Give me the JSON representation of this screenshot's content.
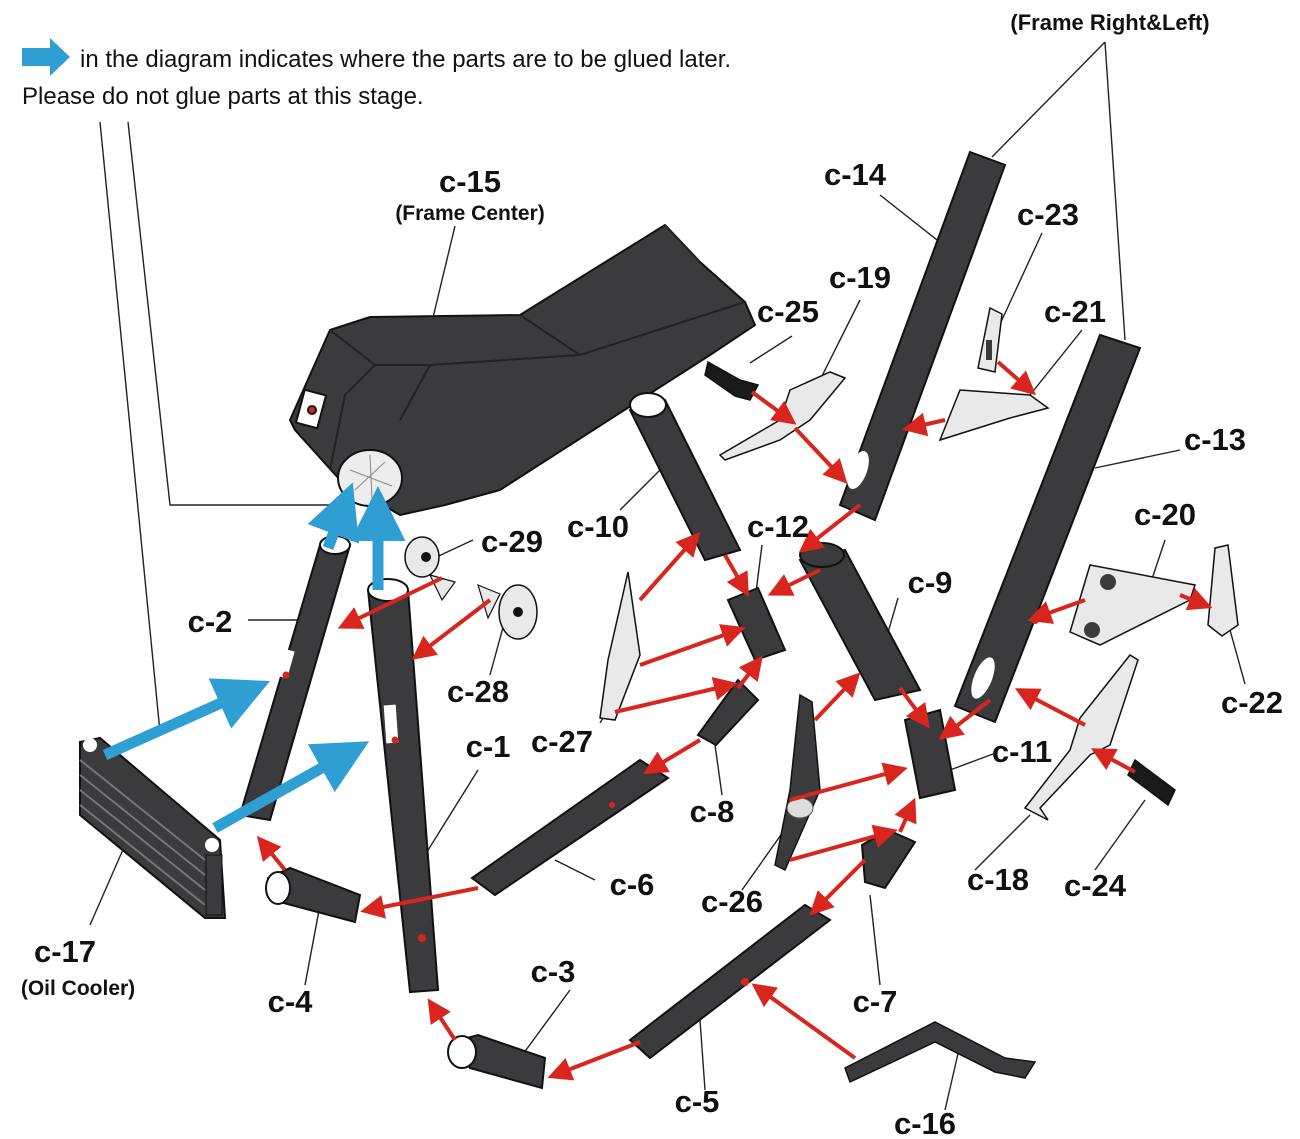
{
  "instructions": {
    "line1": "in the diagram indicates where the parts are to be glued later.",
    "line2": "Please do not glue parts at this stage."
  },
  "group_labels": {
    "frame_right_left": "(Frame Right&Left)",
    "frame_center": "(Frame Center)",
    "oil_cooler": "(Oil Cooler)"
  },
  "parts": {
    "c1": "c-1",
    "c2": "c-2",
    "c3": "c-3",
    "c4": "c-4",
    "c5": "c-5",
    "c6": "c-6",
    "c7": "c-7",
    "c8": "c-8",
    "c9": "c-9",
    "c10": "c-10",
    "c11": "c-11",
    "c12": "c-12",
    "c13": "c-13",
    "c14": "c-14",
    "c15": "c-15",
    "c16": "c-16",
    "c17": "c-17",
    "c18": "c-18",
    "c19": "c-19",
    "c20": "c-20",
    "c21": "c-21",
    "c22": "c-22",
    "c23": "c-23",
    "c24": "c-24",
    "c25": "c-25",
    "c26": "c-26",
    "c27": "c-27",
    "c28": "c-28",
    "c29": "c-29"
  },
  "colors": {
    "part_fill": "#3b3b3d",
    "part_stroke": "#111111",
    "assembly_arrow": "#d8251d",
    "glue_later_arrow": "#2f9fd3",
    "light_part": "#e9e9e9"
  }
}
